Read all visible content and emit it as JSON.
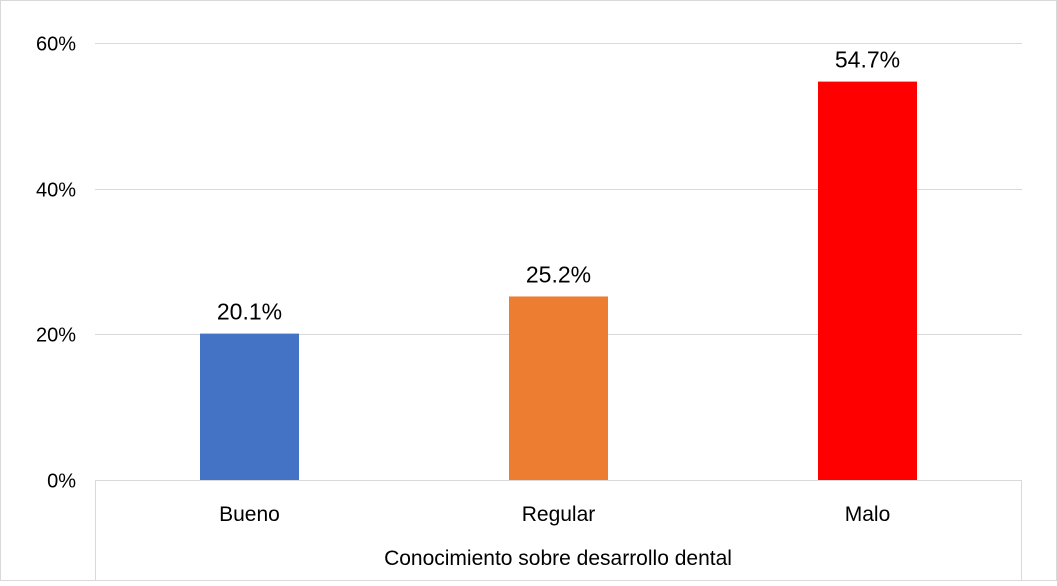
{
  "chart_data": {
    "type": "bar",
    "categories": [
      "Bueno",
      "Regular",
      "Malo"
    ],
    "values": [
      20.1,
      25.2,
      54.7
    ],
    "data_labels": [
      "20.1%",
      "25.2%",
      "54.7%"
    ],
    "colors": [
      "#4472C4",
      "#ED7D31",
      "#FF0000"
    ],
    "title": "",
    "xlabel": "Conocimiento sobre desarrollo dental",
    "ylabel": "",
    "ylim": [
      0,
      60
    ],
    "yticks": [
      0,
      20,
      40,
      60
    ],
    "ytick_labels": [
      "0%",
      "20%",
      "40%",
      "60%"
    ],
    "grid": true,
    "legend": "none"
  }
}
